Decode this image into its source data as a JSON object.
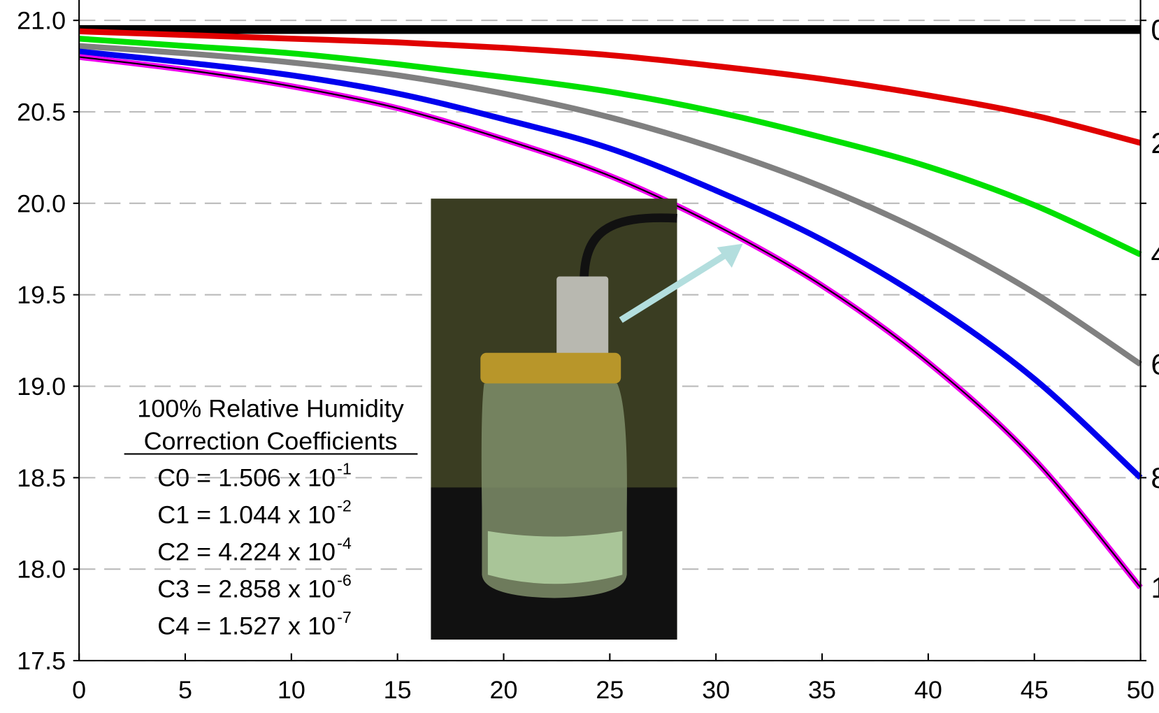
{
  "chart_data": {
    "type": "line",
    "x": [
      0,
      5,
      10,
      15,
      20,
      25,
      30,
      35,
      40,
      45,
      50
    ],
    "series": [
      {
        "name": "0",
        "color": "#000000",
        "values": [
          20.95,
          20.95,
          20.95,
          20.95,
          20.95,
          20.95,
          20.95,
          20.95,
          20.95,
          20.95,
          20.95
        ]
      },
      {
        "name": "2",
        "color": "#e00000",
        "values": [
          20.94,
          20.92,
          20.9,
          20.88,
          20.85,
          20.81,
          20.75,
          20.68,
          20.59,
          20.48,
          20.33
        ]
      },
      {
        "name": "4",
        "color": "#00e000",
        "values": [
          20.9,
          20.86,
          20.82,
          20.76,
          20.69,
          20.61,
          20.5,
          20.36,
          20.2,
          19.99,
          19.72
        ]
      },
      {
        "name": "6",
        "color": "#808080",
        "values": [
          20.86,
          20.82,
          20.77,
          20.7,
          20.6,
          20.47,
          20.3,
          20.09,
          19.83,
          19.51,
          19.12
        ]
      },
      {
        "name": "8",
        "color": "#0000ee",
        "values": [
          20.83,
          20.77,
          20.7,
          20.6,
          20.46,
          20.3,
          20.07,
          19.8,
          19.46,
          19.04,
          18.5
        ]
      },
      {
        "name": "1",
        "color": "#ee00ee",
        "fit_color": "#000000",
        "values": [
          20.8,
          20.73,
          20.64,
          20.52,
          20.35,
          20.15,
          19.88,
          19.55,
          19.13,
          18.6,
          17.9
        ]
      }
    ],
    "xlim": [
      0,
      50
    ],
    "xticks": [
      0,
      5,
      10,
      15,
      20,
      25,
      30,
      35,
      40,
      45,
      50
    ],
    "ylim": [
      17.5,
      21
    ],
    "yticks": [
      {
        "value": 17.5,
        "label": "17.5"
      },
      {
        "value": 18,
        "label": "18.0"
      },
      18.5,
      {
        "value": 19,
        "label": "19.0"
      },
      19.5,
      {
        "value": 20,
        "label": "20.0"
      },
      20.5,
      {
        "value": 21,
        "label": "21.0"
      }
    ],
    "grid": true,
    "annotation": {
      "title_lines": [
        "100% Relative Humidity",
        "Correction Coefficients"
      ],
      "coefficients": [
        {
          "text": "C0 = 1.506 x 10",
          "exponent": "-1"
        },
        {
          "text": "C1 = 1.044 x 10",
          "exponent": "-2"
        },
        {
          "text": "C2 = 4.224 x 10",
          "exponent": "-4"
        },
        {
          "text": "C3 = 2.858 x 10",
          "exponent": "-6"
        },
        {
          "text": "C4 = 1.527 x 10",
          "exponent": "-7"
        }
      ]
    }
  }
}
